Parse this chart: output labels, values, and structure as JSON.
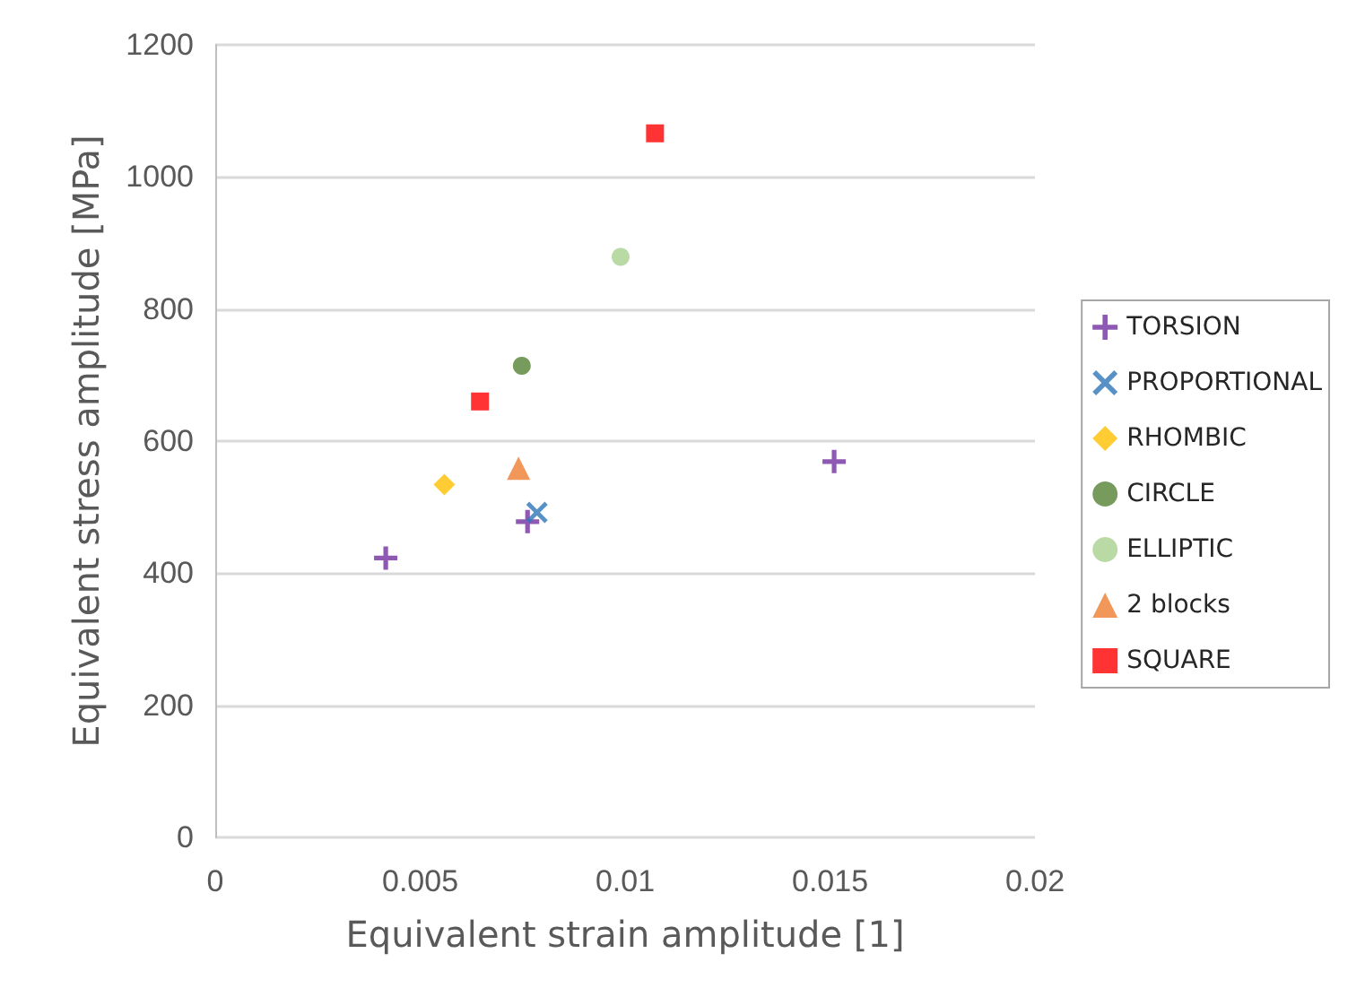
{
  "chart_data": {
    "type": "scatter",
    "xlabel": "Equivalent strain amplitude [1]",
    "ylabel": "Equivalent stress amplitude [MPa]",
    "xlim": [
      0,
      0.02
    ],
    "xticks": [
      0,
      0.005,
      0.01,
      0.015,
      0.02
    ],
    "ylim": [
      0,
      1200
    ],
    "yticks": [
      0,
      200,
      400,
      600,
      800,
      1000,
      1200
    ],
    "grid": "y",
    "legend": "right",
    "series": [
      {
        "name": "TORSION",
        "color": "#7030a0",
        "marker": "plus",
        "x": [
          0.00416,
          0.00762,
          0.0151
        ],
        "values": [
          423,
          478,
          569
        ]
      },
      {
        "name": "PROPORTIONAL",
        "color": "#2e75b6",
        "marker": "cross",
        "x": [
          0.00785
        ],
        "values": [
          492
        ]
      },
      {
        "name": "RHOMBIC",
        "color": "#ffc000",
        "marker": "diamond",
        "x": [
          0.00559
        ],
        "values": [
          534
        ]
      },
      {
        "name": "CIRCLE",
        "color": "#548235",
        "marker": "circle",
        "x": [
          0.00748
        ],
        "values": [
          714
        ]
      },
      {
        "name": "ELLIPTIC",
        "color": "#a9d18e",
        "marker": "circle",
        "x": [
          0.00989
        ],
        "values": [
          879
        ]
      },
      {
        "name": "2 blocks",
        "color": "#ed7d31",
        "marker": "triangle",
        "x": [
          0.0074
        ],
        "values": [
          559
        ]
      },
      {
        "name": "SQUARE",
        "color": "#ff0000",
        "marker": "square",
        "x": [
          0.00646,
          0.01073
        ],
        "values": [
          660,
          1066
        ]
      }
    ]
  }
}
